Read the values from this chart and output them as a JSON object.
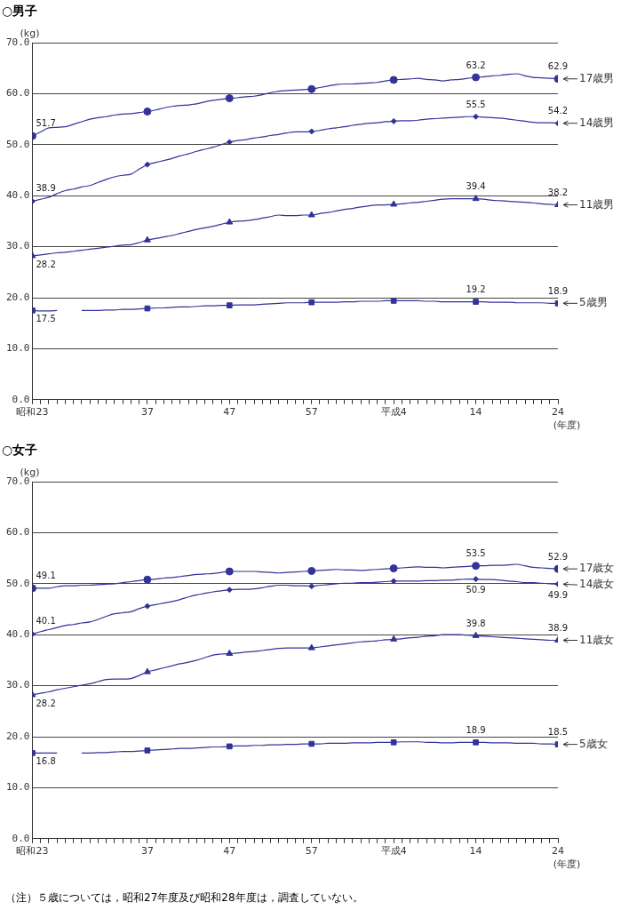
{
  "chart_data": [
    {
      "type": "line",
      "title": "○男子",
      "ylabel": "(kg)",
      "xlabel": "(年度)",
      "categories": [
        "昭和23",
        null,
        null,
        null,
        null,
        null,
        null,
        null,
        null,
        null,
        null,
        null,
        null,
        null,
        "37",
        null,
        null,
        null,
        null,
        null,
        null,
        null,
        null,
        null,
        "47",
        null,
        null,
        null,
        null,
        null,
        null,
        null,
        null,
        null,
        "57",
        null,
        null,
        null,
        null,
        null,
        null,
        null,
        null,
        null,
        "平成4",
        null,
        null,
        null,
        null,
        null,
        null,
        null,
        null,
        null,
        "14",
        null,
        null,
        null,
        null,
        null,
        null,
        null,
        null,
        null,
        "24"
      ],
      "ylim": [
        0,
        70
      ],
      "yticks": [
        {
          "value": 0,
          "label": "0.0"
        },
        {
          "value": 10,
          "label": "10.0"
        },
        {
          "value": 20,
          "label": "20.0"
        },
        {
          "value": 30,
          "label": "30.0"
        },
        {
          "value": 40,
          "label": "40.0"
        },
        {
          "value": 50,
          "label": "50.0"
        },
        {
          "value": 60,
          "label": "60.0"
        },
        {
          "value": 70,
          "label": "70.0"
        }
      ],
      "grid": "y",
      "legend": false,
      "line_style": "solid",
      "series": [
        {
          "name": "17歳男",
          "color": "#333399",
          "values": [
            51.7,
            52.5,
            53.3,
            53.4,
            53.5,
            54.0,
            54.5,
            55.0,
            55.3,
            55.5,
            55.8,
            56.0,
            56.1,
            56.3,
            56.5,
            56.8,
            57.2,
            57.5,
            57.7,
            57.8,
            58.0,
            58.4,
            58.7,
            58.9,
            59.1,
            59.2,
            59.4,
            59.5,
            59.8,
            60.2,
            60.5,
            60.6,
            60.7,
            60.8,
            60.9,
            61.2,
            61.5,
            61.8,
            61.9,
            61.9,
            62.0,
            62.1,
            62.2,
            62.5,
            62.7,
            62.8,
            62.9,
            63.0,
            62.8,
            62.7,
            62.5,
            62.7,
            62.8,
            63.0,
            63.2,
            63.3,
            63.5,
            63.6,
            63.8,
            63.9,
            63.5,
            63.2,
            63.1,
            63.0,
            62.9
          ]
        },
        {
          "type": "scatter",
          "color": "#333399",
          "marker": "circle",
          "x": [
            "昭和23",
            "37",
            "47",
            "57",
            "平成4",
            "14",
            "24"
          ],
          "values": [
            51.7,
            56.5,
            59.1,
            60.9,
            62.7,
            63.2,
            62.9
          ],
          "value_labels": [
            "51.7",
            null,
            null,
            null,
            null,
            "63.2",
            "62.9"
          ]
        },
        {
          "name": "14歳男",
          "color": "#333399",
          "values": [
            38.9,
            39.3,
            39.7,
            40.4,
            41.0,
            41.3,
            41.7,
            42.0,
            42.6,
            43.2,
            43.7,
            44.0,
            44.2,
            45.2,
            46.1,
            46.5,
            46.9,
            47.3,
            47.8,
            48.2,
            48.7,
            49.1,
            49.5,
            50.0,
            50.5,
            50.8,
            51.0,
            51.3,
            51.5,
            51.8,
            52.0,
            52.3,
            52.5,
            52.5,
            52.6,
            52.8,
            53.1,
            53.3,
            53.5,
            53.8,
            54.0,
            54.2,
            54.3,
            54.5,
            54.6,
            54.7,
            54.7,
            54.8,
            55.0,
            55.1,
            55.2,
            55.3,
            55.4,
            55.5,
            55.5,
            55.4,
            55.3,
            55.2,
            55.0,
            54.8,
            54.6,
            54.4,
            54.3,
            54.3,
            54.2
          ]
        },
        {
          "type": "scatter",
          "color": "#333399",
          "marker": "diamond",
          "x": [
            "昭和23",
            "37",
            "47",
            "57",
            "平成4",
            "14",
            "24"
          ],
          "values": [
            38.9,
            46.1,
            50.5,
            52.6,
            54.6,
            55.5,
            54.2
          ],
          "value_labels": [
            "38.9",
            null,
            null,
            null,
            null,
            "55.5",
            "54.2"
          ]
        },
        {
          "name": "11歳男",
          "color": "#333399",
          "values": [
            28.2,
            28.4,
            28.6,
            28.8,
            28.9,
            29.1,
            29.3,
            29.5,
            29.7,
            29.9,
            30.1,
            30.3,
            30.4,
            30.8,
            31.3,
            31.6,
            31.9,
            32.2,
            32.6,
            33.0,
            33.4,
            33.7,
            34.0,
            34.4,
            34.8,
            35.0,
            35.1,
            35.3,
            35.6,
            35.9,
            36.2,
            36.1,
            36.1,
            36.2,
            36.2,
            36.5,
            36.7,
            37.0,
            37.3,
            37.5,
            37.8,
            38.0,
            38.2,
            38.2,
            38.3,
            38.4,
            38.6,
            38.7,
            38.9,
            39.1,
            39.3,
            39.4,
            39.4,
            39.4,
            39.4,
            39.3,
            39.1,
            39.0,
            38.9,
            38.8,
            38.7,
            38.6,
            38.4,
            38.3,
            38.2
          ]
        },
        {
          "type": "scatter",
          "color": "#333399",
          "marker": "triangle",
          "x": [
            "昭和23",
            "37",
            "47",
            "57",
            "平成4",
            "14",
            "24"
          ],
          "values": [
            28.2,
            31.3,
            34.8,
            36.2,
            38.3,
            39.4,
            38.2
          ],
          "value_labels": [
            "28.2",
            null,
            null,
            null,
            null,
            "39.4",
            "38.2"
          ]
        },
        {
          "name": "5歳男",
          "color": "#333399",
          "values": [
            17.5,
            17.4,
            17.4,
            17.5,
            null,
            null,
            17.5,
            17.5,
            17.5,
            17.6,
            17.6,
            17.7,
            17.7,
            17.8,
            17.9,
            18.0,
            18.0,
            18.1,
            18.2,
            18.2,
            18.3,
            18.4,
            18.4,
            18.5,
            18.5,
            18.6,
            18.6,
            18.6,
            18.7,
            18.8,
            18.9,
            19.0,
            19.0,
            19.0,
            19.1,
            19.1,
            19.1,
            19.1,
            19.2,
            19.2,
            19.3,
            19.3,
            19.3,
            19.4,
            19.4,
            19.4,
            19.4,
            19.4,
            19.3,
            19.3,
            19.2,
            19.2,
            19.2,
            19.2,
            19.2,
            19.2,
            19.1,
            19.1,
            19.1,
            19.0,
            19.0,
            19.0,
            19.0,
            18.9,
            18.9
          ]
        },
        {
          "type": "scatter",
          "color": "#333399",
          "marker": "square",
          "x": [
            "昭和23",
            "37",
            "47",
            "57",
            "平成4",
            "14",
            "24"
          ],
          "values": [
            17.5,
            17.9,
            18.5,
            19.1,
            19.4,
            19.2,
            18.9
          ],
          "value_labels": [
            "17.5",
            null,
            null,
            null,
            null,
            "19.2",
            "18.9"
          ]
        }
      ]
    },
    {
      "type": "line",
      "title": "○女子",
      "ylabel": "(kg)",
      "xlabel": "(年度)",
      "categories": [
        "昭和23",
        null,
        null,
        null,
        null,
        null,
        null,
        null,
        null,
        null,
        null,
        null,
        null,
        null,
        "37",
        null,
        null,
        null,
        null,
        null,
        null,
        null,
        null,
        null,
        "47",
        null,
        null,
        null,
        null,
        null,
        null,
        null,
        null,
        null,
        "57",
        null,
        null,
        null,
        null,
        null,
        null,
        null,
        null,
        null,
        "平成4",
        null,
        null,
        null,
        null,
        null,
        null,
        null,
        null,
        null,
        "14",
        null,
        null,
        null,
        null,
        null,
        null,
        null,
        null,
        null,
        "24"
      ],
      "ylim": [
        0,
        70
      ],
      "yticks": [
        {
          "value": 0,
          "label": "0.0"
        },
        {
          "value": 10,
          "label": "10.0"
        },
        {
          "value": 20,
          "label": "20.0"
        },
        {
          "value": 30,
          "label": "30.0"
        },
        {
          "value": 40,
          "label": "40.0"
        },
        {
          "value": 50,
          "label": "50.0"
        },
        {
          "value": 60,
          "label": "60.0"
        },
        {
          "value": 70,
          "label": "70.0"
        }
      ],
      "grid": "y",
      "legend": false,
      "line_style": "solid",
      "annotations": [
        "（注）５歳については，昭和27年度及び昭和28年度は，調査していない。"
      ],
      "series": [
        {
          "name": "17歳女",
          "color": "#333399",
          "values": [
            49.1,
            49.1,
            49.1,
            49.4,
            49.6,
            49.6,
            49.7,
            49.7,
            49.8,
            49.9,
            50.0,
            50.2,
            50.4,
            50.6,
            50.8,
            50.9,
            51.1,
            51.2,
            51.4,
            51.6,
            51.8,
            51.9,
            52.0,
            52.2,
            52.4,
            52.4,
            52.4,
            52.4,
            52.3,
            52.2,
            52.1,
            52.2,
            52.3,
            52.4,
            52.5,
            52.6,
            52.7,
            52.8,
            52.7,
            52.7,
            52.6,
            52.7,
            52.8,
            52.9,
            53.0,
            53.1,
            53.2,
            53.3,
            53.2,
            53.2,
            53.1,
            53.2,
            53.3,
            53.4,
            53.5,
            53.5,
            53.6,
            53.6,
            53.7,
            53.8,
            53.5,
            53.2,
            53.1,
            53.0,
            52.9
          ]
        },
        {
          "type": "scatter",
          "color": "#333399",
          "marker": "circle",
          "x": [
            "昭和23",
            "37",
            "47",
            "57",
            "平成4",
            "14",
            "24"
          ],
          "values": [
            49.1,
            50.8,
            52.4,
            52.5,
            53.0,
            53.5,
            52.9
          ],
          "value_labels": [
            "49.1",
            null,
            null,
            null,
            null,
            "53.5",
            "52.9"
          ]
        },
        {
          "name": "14歳女",
          "color": "#333399",
          "values": [
            40.1,
            40.6,
            41.0,
            41.4,
            41.8,
            42.0,
            42.3,
            42.5,
            43.0,
            43.6,
            44.1,
            44.3,
            44.5,
            45.1,
            45.6,
            45.9,
            46.2,
            46.5,
            46.9,
            47.4,
            47.8,
            48.1,
            48.4,
            48.6,
            48.8,
            48.9,
            48.9,
            49.0,
            49.2,
            49.5,
            49.7,
            49.7,
            49.6,
            49.6,
            49.5,
            49.7,
            49.8,
            50.0,
            50.1,
            50.1,
            50.2,
            50.2,
            50.3,
            50.4,
            50.5,
            50.5,
            50.5,
            50.5,
            50.6,
            50.6,
            50.7,
            50.7,
            50.8,
            50.9,
            50.9,
            50.8,
            50.8,
            50.7,
            50.5,
            50.4,
            50.2,
            50.2,
            50.1,
            50.0,
            49.9
          ]
        },
        {
          "type": "scatter",
          "color": "#333399",
          "marker": "diamond",
          "x": [
            "昭和23",
            "37",
            "47",
            "57",
            "平成4",
            "14",
            "24"
          ],
          "values": [
            40.1,
            45.6,
            48.8,
            49.5,
            50.5,
            50.9,
            49.9
          ],
          "value_labels": [
            "40.1",
            null,
            null,
            null,
            null,
            "50.9",
            "49.9"
          ]
        },
        {
          "name": "11歳女",
          "color": "#333399",
          "values": [
            28.2,
            28.5,
            28.8,
            29.2,
            29.5,
            29.8,
            30.1,
            30.4,
            30.8,
            31.2,
            31.3,
            31.3,
            31.4,
            32.0,
            32.7,
            33.1,
            33.5,
            33.9,
            34.3,
            34.6,
            35.0,
            35.5,
            36.0,
            36.2,
            36.3,
            36.4,
            36.6,
            36.7,
            36.9,
            37.1,
            37.3,
            37.4,
            37.4,
            37.4,
            37.4,
            37.6,
            37.8,
            38.0,
            38.2,
            38.4,
            38.6,
            38.7,
            38.8,
            39.0,
            39.1,
            39.2,
            39.4,
            39.5,
            39.7,
            39.8,
            40.0,
            40.0,
            40.0,
            39.9,
            39.8,
            39.7,
            39.6,
            39.5,
            39.4,
            39.3,
            39.2,
            39.1,
            39.0,
            38.9,
            38.9
          ]
        },
        {
          "type": "scatter",
          "color": "#333399",
          "marker": "triangle",
          "x": [
            "昭和23",
            "37",
            "47",
            "57",
            "平成4",
            "14",
            "24"
          ],
          "values": [
            28.2,
            32.7,
            36.3,
            37.4,
            39.1,
            39.8,
            38.9
          ],
          "value_labels": [
            "28.2",
            null,
            null,
            null,
            null,
            "39.8",
            "38.9"
          ]
        },
        {
          "name": "5歳女",
          "color": "#333399",
          "values": [
            16.8,
            16.8,
            16.8,
            16.8,
            null,
            null,
            16.8,
            16.8,
            16.9,
            16.9,
            17.0,
            17.1,
            17.1,
            17.2,
            17.3,
            17.4,
            17.5,
            17.6,
            17.7,
            17.7,
            17.8,
            17.9,
            18.0,
            18.0,
            18.1,
            18.2,
            18.2,
            18.3,
            18.3,
            18.4,
            18.4,
            18.5,
            18.5,
            18.6,
            18.6,
            18.6,
            18.7,
            18.7,
            18.7,
            18.8,
            18.8,
            18.8,
            18.9,
            18.9,
            18.9,
            19.0,
            19.0,
            19.0,
            18.9,
            18.9,
            18.8,
            18.8,
            18.9,
            18.9,
            18.9,
            18.9,
            18.8,
            18.8,
            18.8,
            18.7,
            18.7,
            18.7,
            18.6,
            18.6,
            18.5
          ]
        },
        {
          "type": "scatter",
          "color": "#333399",
          "marker": "square",
          "x": [
            "昭和23",
            "37",
            "47",
            "57",
            "平成4",
            "14",
            "24"
          ],
          "values": [
            16.8,
            17.3,
            18.1,
            18.6,
            18.9,
            18.9,
            18.5
          ],
          "value_labels": [
            "16.8",
            null,
            null,
            null,
            null,
            "18.9",
            "18.5"
          ]
        }
      ]
    }
  ]
}
